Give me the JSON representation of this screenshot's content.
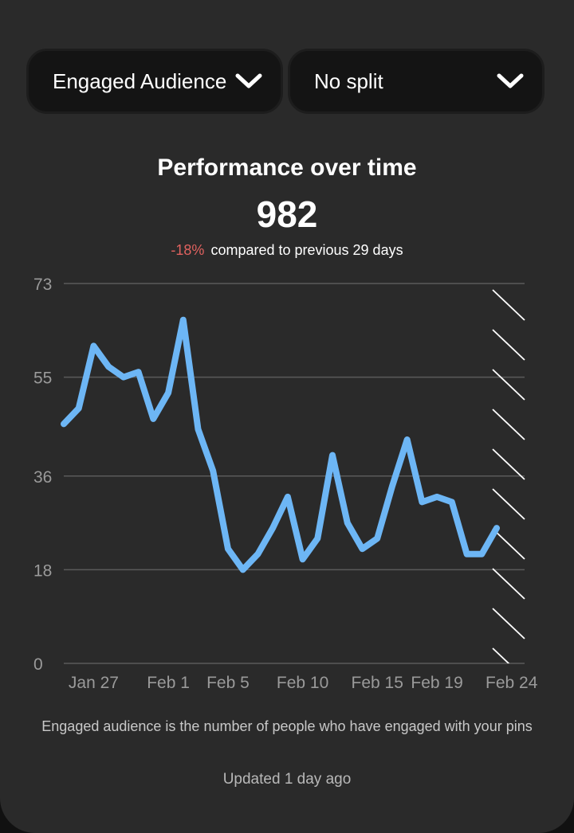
{
  "filters": {
    "metric_label": "Engaged Audience",
    "split_label": "No split"
  },
  "icons": {
    "dropdown": "chevron-down-icon"
  },
  "summary": {
    "title": "Performance over time",
    "value": "982",
    "delta": "-18%",
    "compare_text": "compared to previous 29 days"
  },
  "colors": {
    "line": "#6db6f5",
    "delta_negative": "#e0625f",
    "background": "#2a2a2a"
  },
  "chart_data": {
    "type": "line",
    "title": "",
    "xlabel": "",
    "ylabel": "",
    "ylim": [
      0,
      73
    ],
    "y_ticks": [
      0,
      18,
      36,
      55,
      73
    ],
    "x_ticks": [
      "Jan 27",
      "Feb 1",
      "Feb 5",
      "Feb 10",
      "Feb 15",
      "Feb 19",
      "Feb 24"
    ],
    "grid": true,
    "incomplete_period": "hatched region after last point",
    "series": [
      {
        "name": "",
        "x": [
          "Jan 25",
          "Jan 26",
          "Jan 27",
          "Jan 28",
          "Jan 29",
          "Jan 30",
          "Jan 31",
          "Feb 1",
          "Feb 2",
          "Feb 3",
          "Feb 4",
          "Feb 5",
          "Feb 6",
          "Feb 7",
          "Feb 8",
          "Feb 9",
          "Feb 10",
          "Feb 11",
          "Feb 12",
          "Feb 13",
          "Feb 14",
          "Feb 15",
          "Feb 16",
          "Feb 17",
          "Feb 18",
          "Feb 19",
          "Feb 20",
          "Feb 21",
          "Feb 22",
          "Feb 23"
        ],
        "values": [
          46,
          49,
          61,
          57,
          55,
          56,
          47,
          52,
          66,
          45,
          37,
          22,
          18,
          21,
          26,
          32,
          20,
          24,
          40,
          27,
          22,
          24,
          34,
          43,
          31,
          32,
          31,
          21,
          21,
          26
        ]
      }
    ]
  },
  "footnote": "Engaged audience is the number of people who have engaged with your pins",
  "updated": "Updated 1 day ago"
}
